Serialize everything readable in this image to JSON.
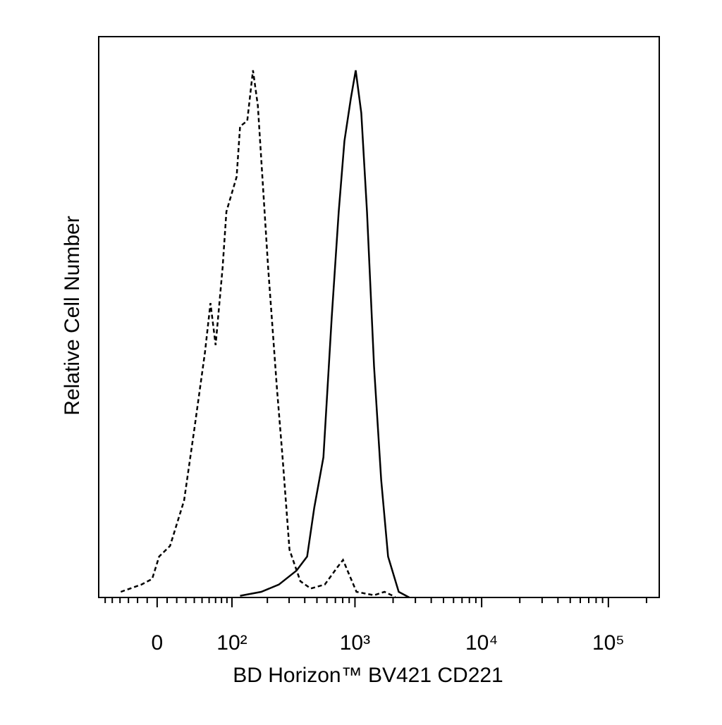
{
  "chart_data": {
    "type": "line",
    "xlabel": "BD Horizon™ BV421 CD221",
    "ylabel": "Relative Cell Number",
    "xscale": "biexponential",
    "xlim": [
      -70,
      252000
    ],
    "ylim": [
      0,
      100
    ],
    "xticks": [
      0,
      {
        "value": 100,
        "label": "10²"
      },
      {
        "value": 1000,
        "label": "10³"
      },
      {
        "value": 10000,
        "label": "10⁴"
      },
      {
        "value": 100000,
        "label": "10⁵"
      }
    ],
    "xminorticks": [
      -60,
      -50,
      -40,
      -30,
      -20,
      -10,
      10,
      20,
      30,
      40,
      50,
      60,
      70,
      80,
      90,
      200,
      300,
      400,
      500,
      600,
      700,
      800,
      900,
      2000,
      3000,
      4000,
      5000,
      6000,
      7000,
      8000,
      9000,
      20000,
      30000,
      40000,
      50000,
      60000,
      70000,
      80000,
      90000,
      200000
    ],
    "series": [
      {
        "color": "#000000",
        "dashed": true,
        "x": [
          -39,
          -16,
          -5,
          2,
          13,
          28,
          40,
          54,
          62,
          70,
          82,
          89,
          110,
          118,
          136,
          152,
          167,
          203,
          239,
          266,
          302,
          369,
          446,
          577,
          727,
          805,
          900,
          1028,
          1414,
          1711,
          2079
        ],
        "values": [
          1,
          2.3,
          3.3,
          7.3,
          9.2,
          17.3,
          30,
          43.7,
          52.5,
          45,
          58.8,
          68.8,
          75,
          84,
          85,
          94,
          87.7,
          58.8,
          37.4,
          24.9,
          8.5,
          2.9,
          1.6,
          2.3,
          5.4,
          6.7,
          4.1,
          1,
          0.4,
          1,
          0.1
        ]
      },
      {
        "color": "#000000",
        "dashed": false,
        "x": [
          118,
          178,
          248,
          344,
          418,
          476,
          563,
          655,
          744,
          825,
          928,
          1014,
          1122,
          1244,
          1414,
          1611,
          1826,
          2216,
          2684
        ],
        "values": [
          0.3,
          1,
          2.3,
          4.8,
          7.3,
          16,
          25,
          50,
          68.8,
          81.4,
          89,
          94,
          86.4,
          68.8,
          41.2,
          21,
          7.3,
          1,
          0
        ]
      }
    ]
  }
}
